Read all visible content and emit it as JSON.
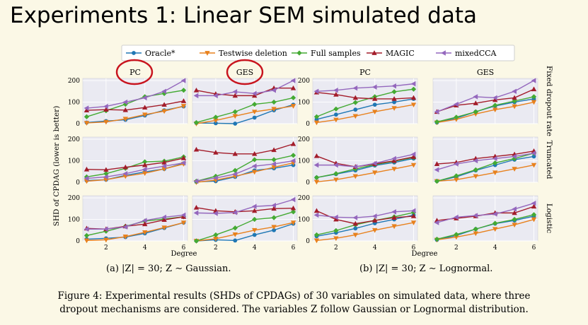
{
  "slide_title": "Experiments 1: Linear SEM simulated data",
  "legend": [
    {
      "name": "Oracle*",
      "color": "#1f77b4",
      "marker": "circle"
    },
    {
      "name": "Testwise deletion",
      "color": "#e8811d",
      "marker": "triangle-down"
    },
    {
      "name": "Full samples",
      "color": "#44aa33",
      "marker": "diamond"
    },
    {
      "name": "MAGIC",
      "color": "#a31c2a",
      "marker": "triangle-up"
    },
    {
      "name": "mixedCCA",
      "color": "#9467bd",
      "marker": "triangle-left"
    }
  ],
  "column_titles": [
    "PC",
    "GES",
    "PC",
    "GES"
  ],
  "row_labels": [
    "Fixed dropout rate",
    "Truncated",
    "Logistic"
  ],
  "ylabel": "SHD of CPDAG (lower is better)",
  "xlabel": "Degree",
  "x_ticks": [
    "2",
    "4",
    "6"
  ],
  "y_ticks": [
    "0",
    "100",
    "200"
  ],
  "subcaptions": {
    "a": "(a) |Z| = 30; Z ∼ Gaussian.",
    "b": "(b) |Z| = 30; Z ∼ Lognormal."
  },
  "figure_caption": {
    "line1": "Figure 4: Experimental results (SHDs of CPDAGs) of 30 variables on simulated data, where three",
    "line2": "dropout mechanisms are considered. The variables Z follow Gaussian or Lognormal distribution."
  },
  "chart_data": {
    "type": "line",
    "x": [
      1,
      2,
      3,
      4,
      5,
      6
    ],
    "xlim": [
      0.8,
      6.2
    ],
    "ylim": [
      0,
      210
    ],
    "panels": [
      {
        "row": 0,
        "col": 0,
        "series": {
          "Oracle*": [
            5,
            12,
            18,
            38,
            62,
            80
          ],
          "Testwise deletion": [
            3,
            8,
            22,
            42,
            58,
            82
          ],
          "Full samples": [
            32,
            60,
            90,
            125,
            140,
            155
          ],
          "MAGIC": [
            62,
            65,
            63,
            75,
            88,
            105
          ],
          "mixedCCA": [
            72,
            80,
            100,
            120,
            150,
            200
          ]
        }
      },
      {
        "row": 0,
        "col": 1,
        "series": {
          "Oracle*": [
            3,
            2,
            0,
            28,
            62,
            88
          ],
          "Testwise deletion": [
            0,
            15,
            35,
            55,
            68,
            82
          ],
          "Full samples": [
            5,
            30,
            55,
            90,
            100,
            120
          ],
          "MAGIC": [
            155,
            138,
            130,
            130,
            165,
            165
          ],
          "mixedCCA": [
            130,
            130,
            148,
            140,
            155,
            200
          ]
        }
      },
      {
        "row": 0,
        "col": 2,
        "series": {
          "Oracle*": [
            20,
            42,
            65,
            88,
            100,
            115
          ],
          "Testwise deletion": [
            5,
            18,
            35,
            55,
            72,
            88
          ],
          "Full samples": [
            32,
            68,
            98,
            125,
            148,
            160
          ],
          "MAGIC": [
            145,
            135,
            120,
            115,
            115,
            120
          ],
          "mixedCCA": [
            150,
            155,
            165,
            170,
            175,
            185
          ]
        }
      },
      {
        "row": 0,
        "col": 3,
        "series": {
          "Oracle*": [
            5,
            25,
            55,
            82,
            100,
            115
          ],
          "Testwise deletion": [
            5,
            20,
            45,
            65,
            80,
            100
          ],
          "Full samples": [
            8,
            30,
            55,
            85,
            105,
            125
          ],
          "MAGIC": [
            55,
            85,
            95,
            110,
            120,
            160
          ],
          "mixedCCA": [
            55,
            90,
            125,
            120,
            150,
            200
          ]
        }
      },
      {
        "row": 1,
        "col": 0,
        "series": {
          "Oracle*": [
            8,
            12,
            32,
            48,
            62,
            88
          ],
          "Testwise deletion": [
            5,
            12,
            28,
            42,
            62,
            85
          ],
          "Full samples": [
            25,
            40,
            65,
            95,
            98,
            118
          ],
          "MAGIC": [
            60,
            58,
            70,
            80,
            92,
            112
          ],
          "mixedCCA": [
            18,
            25,
            40,
            60,
            75,
            90
          ]
        }
      },
      {
        "row": 1,
        "col": 1,
        "series": {
          "Oracle*": [
            2,
            5,
            25,
            55,
            65,
            80
          ],
          "Testwise deletion": [
            0,
            10,
            28,
            48,
            70,
            90
          ],
          "Full samples": [
            5,
            28,
            55,
            105,
            105,
            125
          ],
          "MAGIC": [
            152,
            138,
            132,
            132,
            150,
            178
          ],
          "mixedCCA": [
            5,
            20,
            38,
            75,
            85,
            100
          ]
        }
      },
      {
        "row": 1,
        "col": 2,
        "series": {
          "Oracle*": [
            22,
            38,
            55,
            78,
            92,
            110
          ],
          "Testwise deletion": [
            2,
            12,
            28,
            45,
            62,
            80
          ],
          "Full samples": [
            22,
            40,
            62,
            82,
            98,
            115
          ],
          "MAGIC": [
            122,
            88,
            72,
            85,
            100,
            118
          ],
          "mixedCCA": [
            80,
            80,
            72,
            88,
            110,
            130
          ]
        }
      },
      {
        "row": 1,
        "col": 3,
        "series": {
          "Oracle*": [
            5,
            25,
            55,
            80,
            105,
            120
          ],
          "Testwise deletion": [
            5,
            12,
            28,
            45,
            62,
            80
          ],
          "Full samples": [
            5,
            30,
            58,
            90,
            110,
            135
          ],
          "MAGIC": [
            85,
            92,
            110,
            120,
            130,
            145
          ],
          "mixedCCA": [
            58,
            85,
            100,
            110,
            120,
            135
          ]
        }
      },
      {
        "row": 2,
        "col": 0,
        "series": {
          "Oracle*": [
            8,
            12,
            18,
            35,
            60,
            85
          ],
          "Testwise deletion": [
            2,
            5,
            20,
            40,
            62,
            85
          ],
          "Full samples": [
            25,
            45,
            68,
            92,
            102,
            112
          ],
          "MAGIC": [
            58,
            55,
            68,
            78,
            98,
            112
          ],
          "mixedCCA": [
            55,
            55,
            65,
            95,
            110,
            120
          ]
        }
      },
      {
        "row": 2,
        "col": 1,
        "series": {
          "Oracle*": [
            0,
            5,
            2,
            28,
            50,
            80
          ],
          "Testwise deletion": [
            0,
            10,
            30,
            50,
            65,
            85
          ],
          "Full samples": [
            0,
            28,
            60,
            100,
            108,
            135
          ],
          "MAGIC": [
            155,
            140,
            135,
            140,
            150,
            152
          ],
          "mixedCCA": [
            130,
            128,
            132,
            160,
            165,
            192
          ]
        }
      },
      {
        "row": 2,
        "col": 2,
        "series": {
          "Oracle*": [
            22,
            38,
            58,
            82,
            100,
            120
          ],
          "Testwise deletion": [
            2,
            12,
            28,
            50,
            68,
            85
          ],
          "Full samples": [
            28,
            48,
            75,
            95,
            112,
            132
          ],
          "MAGIC": [
            140,
            100,
            80,
            95,
            108,
            115
          ],
          "mixedCCA": [
            120,
            110,
            108,
            115,
            135,
            140
          ]
        }
      },
      {
        "row": 2,
        "col": 3,
        "series": {
          "Oracle*": [
            5,
            25,
            55,
            80,
            95,
            115
          ],
          "Testwise deletion": [
            5,
            18,
            35,
            55,
            75,
            100
          ],
          "Full samples": [
            8,
            30,
            55,
            82,
            100,
            122
          ],
          "MAGIC": [
            95,
            105,
            115,
            130,
            130,
            160
          ],
          "mixedCCA": [
            85,
            110,
            118,
            125,
            148,
            175
          ]
        }
      }
    ]
  }
}
